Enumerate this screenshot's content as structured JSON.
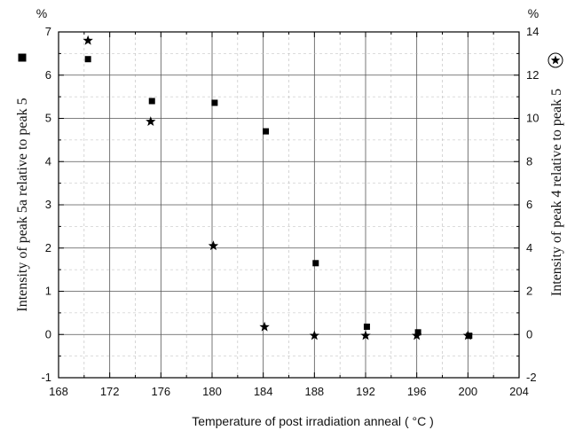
{
  "chart_data": {
    "type": "scatter",
    "x_axis": {
      "label": "Temperature of post irradiation anneal",
      "unit": "( °C )",
      "range": [
        168,
        204
      ],
      "ticks": [
        168,
        172,
        176,
        180,
        184,
        188,
        192,
        196,
        200,
        204
      ],
      "minor_step": 2
    },
    "y_left": {
      "label": "Intensity of peak 5a relative to peak 5",
      "unit": "%",
      "range": [
        -1,
        7
      ],
      "ticks": [
        -1,
        0,
        1,
        2,
        3,
        4,
        5,
        6,
        7
      ],
      "legend_marker": "square"
    },
    "y_right": {
      "label": "Intensity of peak 4 relative to peak 5",
      "unit": "%",
      "range": [
        -2,
        14
      ],
      "ticks": [
        -2,
        0,
        2,
        4,
        6,
        8,
        10,
        12,
        14
      ],
      "legend_marker": "star"
    },
    "grid": true,
    "series": [
      {
        "marker": "square",
        "axis": "left",
        "color": "#000000",
        "points": [
          {
            "x": 170.3,
            "y": 6.37
          },
          {
            "x": 175.3,
            "y": 5.4
          },
          {
            "x": 180.2,
            "y": 5.36
          },
          {
            "x": 184.2,
            "y": 4.7
          },
          {
            "x": 188.1,
            "y": 1.65
          },
          {
            "x": 192.1,
            "y": 0.18
          },
          {
            "x": 196.1,
            "y": 0.05
          },
          {
            "x": 200.1,
            "y": -0.03
          }
        ]
      },
      {
        "marker": "star",
        "axis": "right",
        "color": "#000000",
        "points": [
          {
            "x": 170.3,
            "y": 13.6
          },
          {
            "x": 175.2,
            "y": 9.85
          },
          {
            "x": 180.1,
            "y": 4.1
          },
          {
            "x": 184.1,
            "y": 0.35
          },
          {
            "x": 188.0,
            "y": -0.05
          },
          {
            "x": 192.0,
            "y": -0.05
          },
          {
            "x": 196.0,
            "y": -0.05
          },
          {
            "x": 200.0,
            "y": -0.05
          }
        ]
      }
    ]
  }
}
